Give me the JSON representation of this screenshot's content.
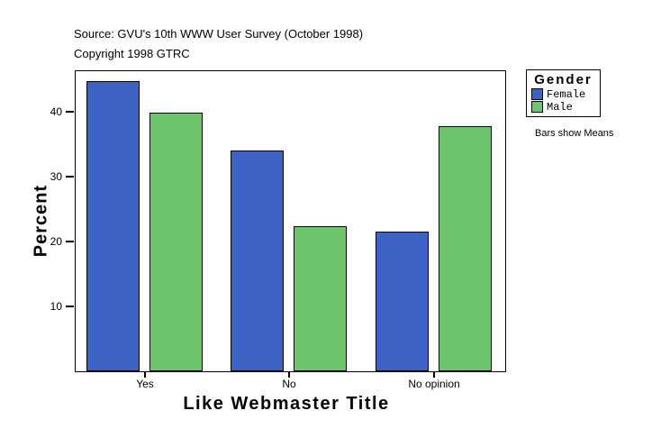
{
  "header": {
    "source": "Source: GVU's 10th WWW User Survey (October 1998)",
    "copyright": "Copyright 1998 GTRC"
  },
  "legend": {
    "title": "Gender",
    "note": "Bars show Means",
    "items": [
      {
        "label": "Female",
        "color": "#3D62C4"
      },
      {
        "label": "Male",
        "color": "#6CC46C"
      }
    ]
  },
  "chart_data": {
    "type": "bar",
    "categories": [
      "Yes",
      "No",
      "No opinion"
    ],
    "series": [
      {
        "name": "Female",
        "color": "#3D62C4",
        "values": [
          44.7,
          34.0,
          21.5
        ]
      },
      {
        "name": "Male",
        "color": "#6CC46C",
        "values": [
          39.8,
          22.3,
          37.8
        ]
      }
    ],
    "xlabel": "Like Webmaster Title",
    "ylabel": "Percent",
    "yticks": [
      10,
      20,
      30,
      40
    ],
    "ylim": [
      0,
      46.3
    ],
    "grid": false,
    "legend_position": "right",
    "annotation": "Bars show Means",
    "units": "percent"
  }
}
